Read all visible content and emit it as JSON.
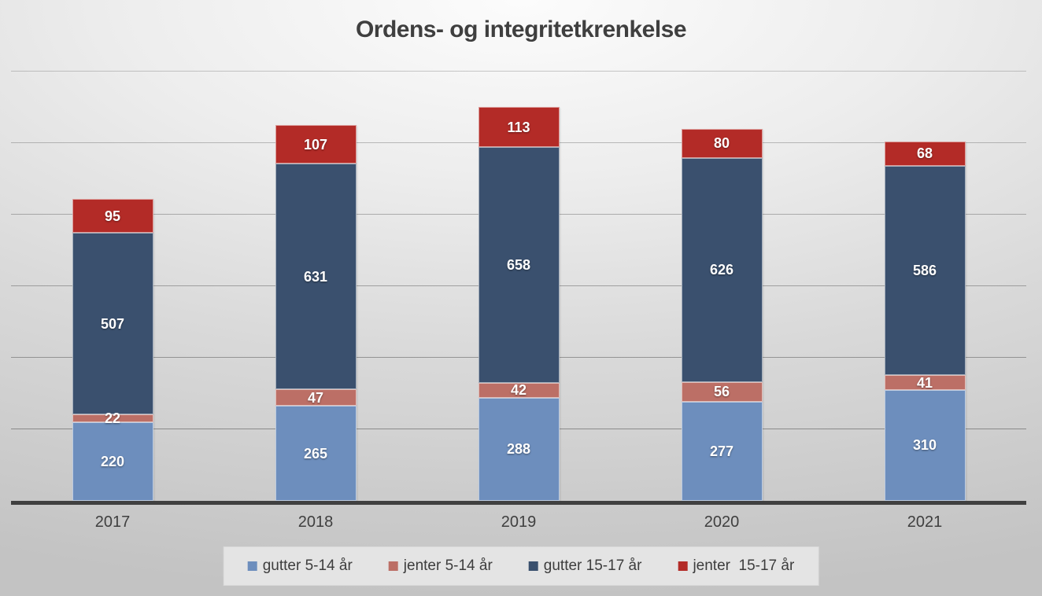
{
  "title": "Ordens- og integritetkrenkelse",
  "chart_data": {
    "type": "bar",
    "stacked": true,
    "title": "Ordens- og integritetkrenkelse",
    "categories": [
      "2017",
      "2018",
      "2019",
      "2020",
      "2021"
    ],
    "series": [
      {
        "name": "gutter 5-14 år",
        "color": "#6D8EBD",
        "values": [
          220,
          265,
          288,
          277,
          310
        ]
      },
      {
        "name": "jenter 5-14 år",
        "color": "#BC6F66",
        "values": [
          22,
          47,
          42,
          56,
          41
        ]
      },
      {
        "name": "gutter 15-17 år",
        "color": "#3A506E",
        "values": [
          507,
          631,
          658,
          626,
          586
        ]
      },
      {
        "name": "jenter  15-17 år",
        "color": "#B32B27",
        "values": [
          95,
          107,
          113,
          80,
          68
        ]
      }
    ],
    "xlabel": "",
    "ylabel": "",
    "ylim": [
      0,
      1200
    ],
    "gridline_step": 200,
    "grid": true,
    "y_tick_labels_visible": false,
    "data_labels": true,
    "legend_position": "bottom",
    "colors": {
      "title_text": "#3f3f3f",
      "axis_line": "#404040",
      "gridline": "#6e6e6e",
      "data_label_text": "#ffffff",
      "legend_background": "#e4e4e4",
      "background_center": "#fcfcfc",
      "background_edge": "#c3c3c3"
    }
  }
}
